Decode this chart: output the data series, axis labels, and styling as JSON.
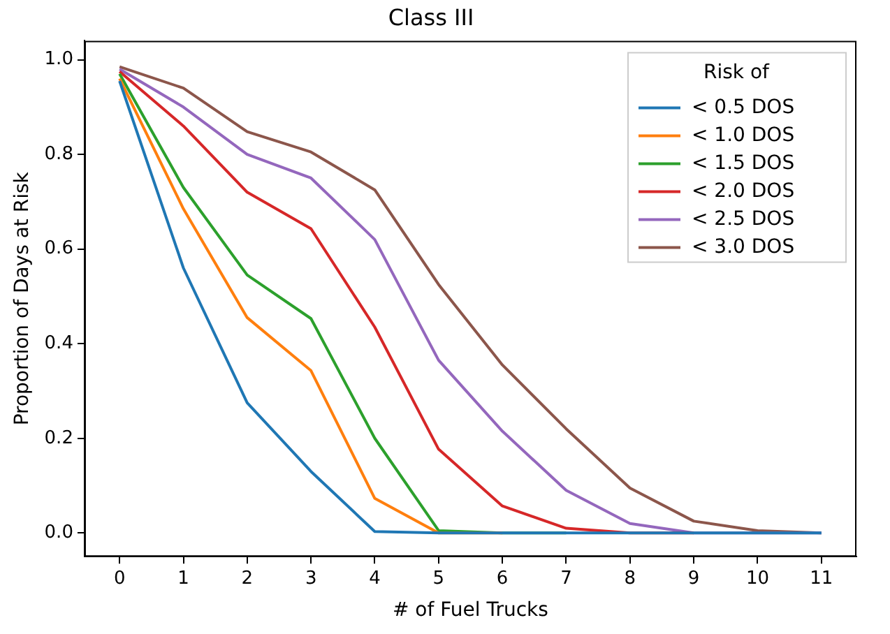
{
  "chart_data": {
    "type": "line",
    "title": "Class III",
    "xlabel": "# of Fuel Trucks",
    "ylabel": "Proportion of Days at Risk",
    "legend_title": "Risk of",
    "legend": "top right",
    "grid": false,
    "marker": "none",
    "line_style": "solid",
    "x": [
      0,
      1,
      2,
      3,
      4,
      5,
      6,
      7,
      8,
      9,
      10,
      11
    ],
    "xlim": [
      -0.55,
      11.55
    ],
    "xticks": [
      0,
      1,
      2,
      3,
      4,
      5,
      6,
      7,
      8,
      9,
      10,
      11
    ],
    "ylim": [
      -0.05,
      1.04
    ],
    "yticks": [
      {
        "value": 0,
        "label": "0.0"
      },
      {
        "value": 0.2,
        "label": "0.2"
      },
      {
        "value": 0.4,
        "label": "0.4"
      },
      {
        "value": 0.6,
        "label": "0.6"
      },
      {
        "value": 0.8,
        "label": "0.8"
      },
      {
        "value": 1,
        "label": "1.0"
      }
    ],
    "series": [
      {
        "name": "< 0.5 DOS",
        "color": "#1f77b4",
        "values": [
          0.955,
          0.56,
          0.275,
          0.13,
          0.003,
          0,
          0,
          0,
          0,
          0,
          0,
          0
        ]
      },
      {
        "name": "< 1.0 DOS",
        "color": "#ff7f0e",
        "values": [
          0.96,
          0.685,
          0.455,
          0.343,
          0.073,
          0,
          0,
          null,
          null,
          null,
          null,
          null
        ]
      },
      {
        "name": "< 1.5 DOS",
        "color": "#2ca02c",
        "values": [
          0.97,
          0.73,
          0.545,
          0.453,
          0.2,
          0.005,
          0,
          0,
          null,
          null,
          null,
          null
        ]
      },
      {
        "name": "< 2.0 DOS",
        "color": "#d62728",
        "values": [
          0.975,
          0.86,
          0.72,
          0.643,
          0.435,
          0.177,
          0.057,
          0.01,
          0,
          0,
          null,
          null
        ]
      },
      {
        "name": "< 2.5 DOS",
        "color": "#9467bd",
        "values": [
          0.98,
          0.9,
          0.8,
          0.75,
          0.62,
          0.365,
          0.215,
          0.09,
          0.02,
          0,
          0,
          0
        ]
      },
      {
        "name": "< 3.0 DOS",
        "color": "#8c564b",
        "values": [
          0.985,
          0.94,
          0.848,
          0.805,
          0.725,
          0.525,
          0.355,
          0.22,
          0.095,
          0.025,
          0.005,
          0
        ]
      }
    ]
  }
}
